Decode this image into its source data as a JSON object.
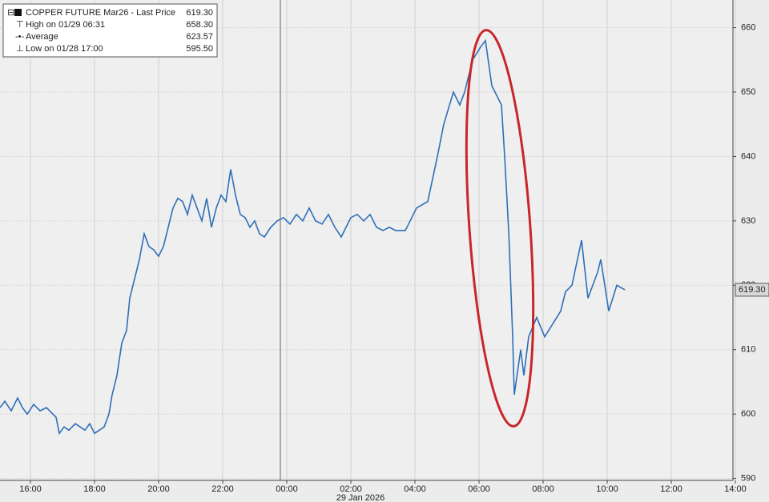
{
  "chart_data": {
    "type": "line",
    "legend_rows": [
      {
        "label": "COPPER FUTURE Mar26 - Last Price",
        "value": "619.30"
      },
      {
        "label": "High on 01/29 06:31",
        "value": "658.30"
      },
      {
        "label": "Average",
        "value": "623.57"
      },
      {
        "label": "Low on 01/28 17:00",
        "value": "595.50"
      }
    ],
    "last_price": {
      "value": 619.3,
      "label": "619.30"
    },
    "x_sublabel": "29 Jan 2026",
    "xlim": [
      15.05,
      37.925
    ],
    "xticks": [
      {
        "value": 16,
        "label": "16:00"
      },
      {
        "value": 18,
        "label": "18:00"
      },
      {
        "value": 20,
        "label": "20:00"
      },
      {
        "value": 22,
        "label": "22:00"
      },
      {
        "value": 24,
        "label": "00:00"
      },
      {
        "value": 26,
        "label": "02:00"
      },
      {
        "value": 28,
        "label": "04:00"
      },
      {
        "value": 30,
        "label": "06:00"
      },
      {
        "value": 32,
        "label": "08:00"
      },
      {
        "value": 34,
        "label": "10:00"
      },
      {
        "value": 36,
        "label": "12:00"
      },
      {
        "value": 38,
        "label": "14:00"
      }
    ],
    "ylim": [
      589.7,
      664.3
    ],
    "yticks": [
      590,
      600,
      610,
      620,
      630,
      640,
      650,
      660
    ],
    "grid": true,
    "series": [
      {
        "name": "COPPER FUTURE Mar26",
        "color": "#2f6fb8",
        "x": [
          15.05,
          15.2,
          15.4,
          15.6,
          15.75,
          15.9,
          16.1,
          16.3,
          16.5,
          16.7,
          16.8,
          16.9,
          17.05,
          17.2,
          17.4,
          17.55,
          17.7,
          17.85,
          18.0,
          18.15,
          18.3,
          18.45,
          18.55,
          18.7,
          18.85,
          19.0,
          19.1,
          19.25,
          19.4,
          19.55,
          19.7,
          19.85,
          20.0,
          20.15,
          20.3,
          20.45,
          20.6,
          20.75,
          20.9,
          21.05,
          21.2,
          21.35,
          21.5,
          21.65,
          21.8,
          21.95,
          22.1,
          22.25,
          22.4,
          22.55,
          22.7,
          22.85,
          23.0,
          23.15,
          23.3,
          23.5,
          23.7,
          23.9,
          24.1,
          24.3,
          24.5,
          24.7,
          24.9,
          25.1,
          25.3,
          25.5,
          25.7,
          25.85,
          26.0,
          26.2,
          26.4,
          26.6,
          26.8,
          27.0,
          27.2,
          27.4,
          27.7,
          28.05,
          28.4,
          28.7,
          28.9,
          29.2,
          29.4,
          29.55,
          29.8,
          30.05,
          30.2,
          30.4,
          30.7,
          30.8,
          30.93,
          31.05,
          31.1,
          31.3,
          31.4,
          31.55,
          31.8,
          32.05,
          32.3,
          32.55,
          32.7,
          32.9,
          33.2,
          33.4,
          33.7,
          33.8,
          34.05,
          34.3,
          34.55
        ],
        "values": [
          601,
          602,
          600.5,
          602.5,
          601,
          600,
          601.5,
          600.5,
          601,
          600,
          599.5,
          597,
          598,
          597.5,
          598.5,
          598,
          597.5,
          598.5,
          597,
          597.5,
          598,
          600,
          603,
          606,
          611,
          613,
          618,
          621,
          624,
          628,
          626,
          625.5,
          624.5,
          626,
          629,
          632,
          633.5,
          633,
          631,
          634,
          632,
          630,
          633.5,
          629,
          632,
          634,
          633,
          638,
          634,
          631,
          630.5,
          629,
          630,
          628,
          627.5,
          629,
          630,
          630.5,
          629.5,
          631,
          630,
          632,
          630,
          629.5,
          631,
          629,
          627.5,
          629,
          630.5,
          631,
          630,
          631,
          629,
          628.5,
          629,
          628.5,
          628.5,
          632,
          633,
          640,
          645,
          650,
          648,
          650,
          655,
          657,
          658,
          651,
          648,
          640,
          628,
          612,
          603,
          610,
          606,
          612,
          615,
          612,
          614,
          616,
          619,
          620,
          627,
          618,
          622,
          624,
          616,
          620,
          619.3
        ]
      }
    ]
  }
}
